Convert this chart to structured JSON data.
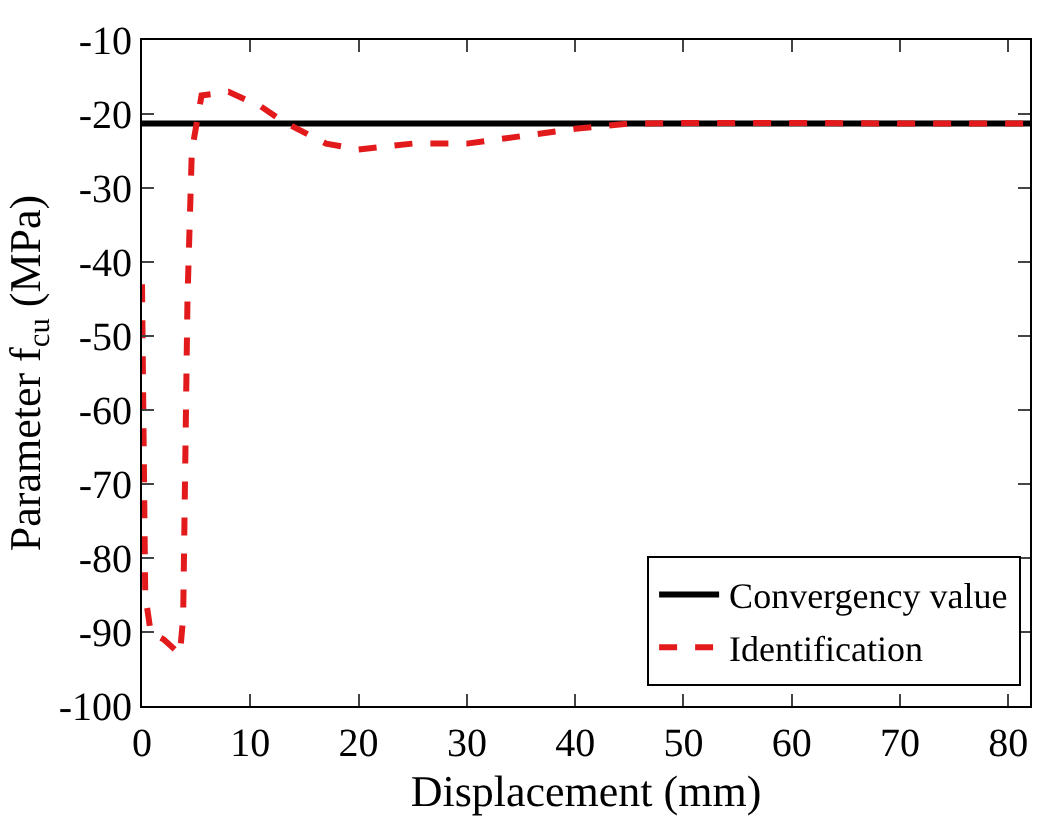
{
  "chart_data": {
    "type": "line",
    "xlabel": "Displacement (mm)",
    "ylabel": "Parameter f$_{cu}$ (MPa)",
    "xlim": [
      0,
      82
    ],
    "xticks": [
      0,
      10,
      20,
      30,
      40,
      50,
      60,
      70,
      80
    ],
    "ylim": [
      -100,
      -10
    ],
    "yticks": [
      -100,
      -90,
      -80,
      -70,
      -60,
      -50,
      -40,
      -30,
      -20,
      -10
    ],
    "legend": "bottom right",
    "marker": "none",
    "series": [
      {
        "name": "Convergency value",
        "color": "#000000",
        "line_style": "solid",
        "x": [
          0,
          82
        ],
        "values": [
          -21.3,
          -21.3
        ]
      },
      {
        "name": "Identification",
        "color": "#e31a1c",
        "line_style": "dashed",
        "x": [
          0,
          0.3,
          0.8,
          2,
          3.5,
          3.8,
          4.2,
          4.6,
          5.5,
          8,
          11,
          13,
          17,
          20,
          25,
          30,
          35,
          40,
          45,
          50,
          60,
          70,
          82
        ],
        "values": [
          -43,
          -85,
          -90,
          -91,
          -93,
          -88,
          -45,
          -25,
          -17.5,
          -17,
          -19,
          -21,
          -24,
          -24.8,
          -24,
          -24,
          -23,
          -22,
          -21.3,
          -21.2,
          -21.2,
          -21.3,
          -21.3
        ]
      }
    ]
  }
}
